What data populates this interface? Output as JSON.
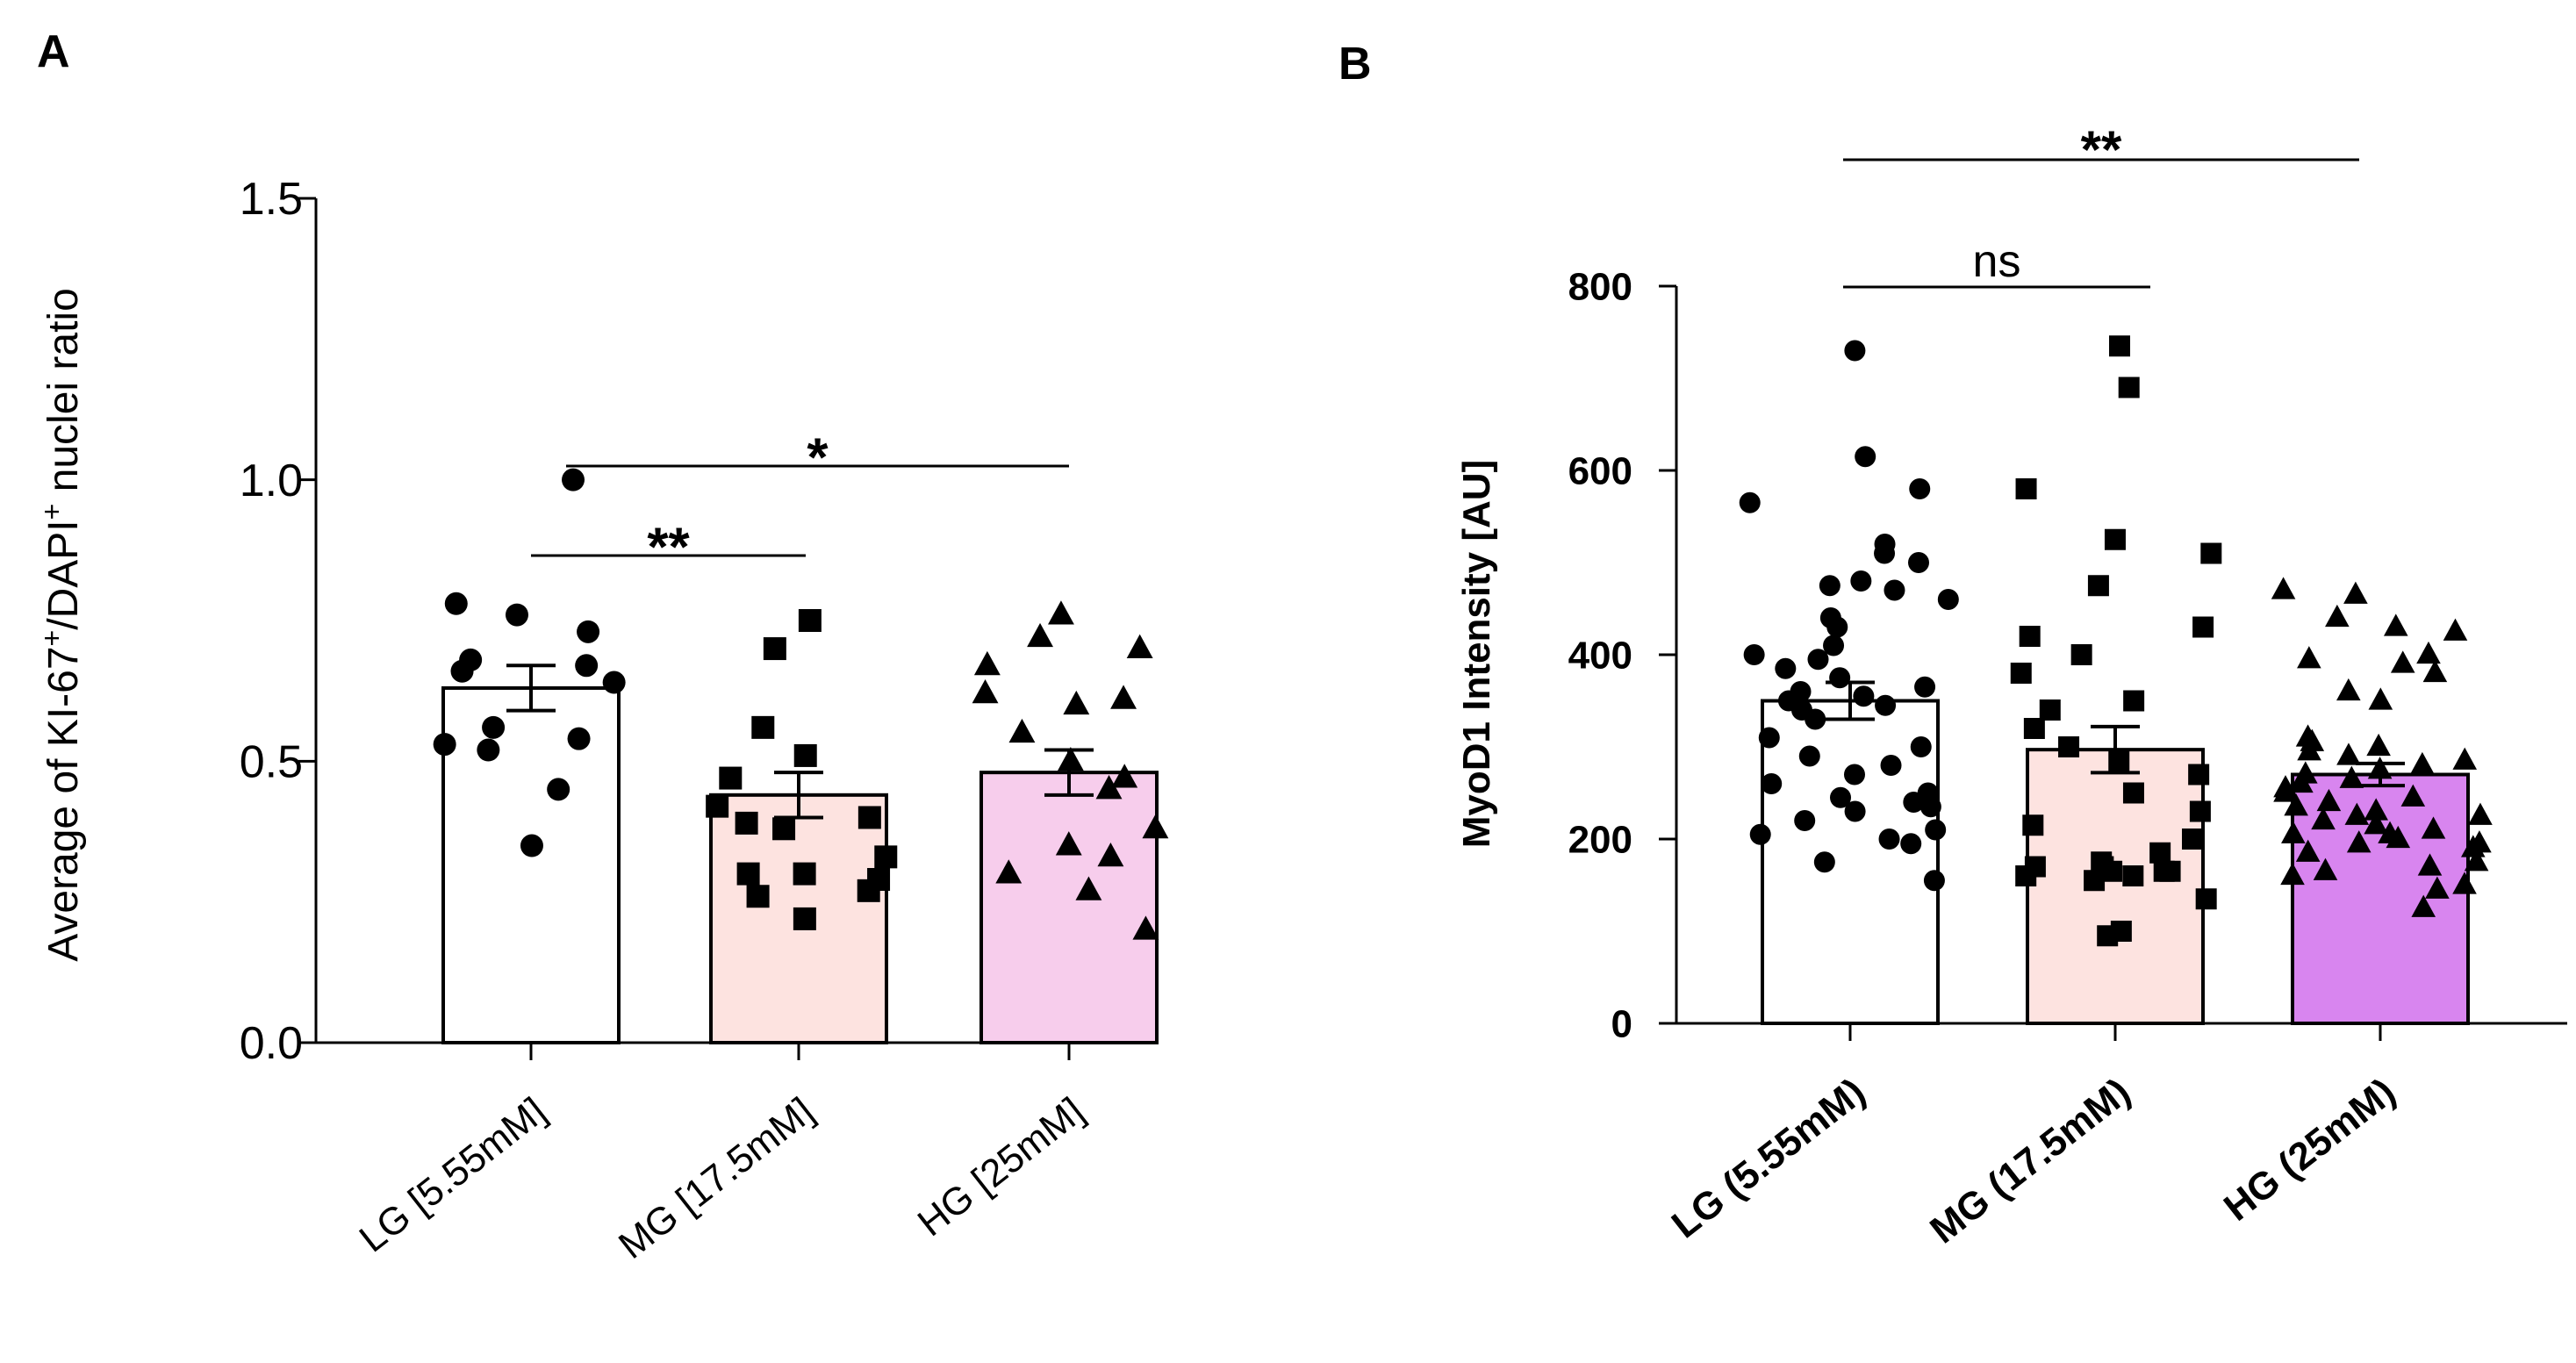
{
  "panels": {
    "a": {
      "label": "A"
    },
    "b": {
      "label": "B"
    }
  },
  "chart_data": [
    {
      "type": "bar",
      "panel": "A",
      "title": "",
      "xlabel": "",
      "ylabel": "Average of KI-67⁺/DAPI⁺ nuclei ratio",
      "ylim": [
        0,
        1.5
      ],
      "yticks": [
        "0.0",
        "0.5",
        "1.0",
        "1.5"
      ],
      "grid": false,
      "categories": [
        "LG [5.55mM]",
        "MG [17.5mM]",
        "HG [25mM]"
      ],
      "values": [
        0.63,
        0.44,
        0.48
      ],
      "sem": [
        0.04,
        0.04,
        0.04
      ],
      "colors": [
        "#ffffff",
        "#fde3e0",
        "#f7cdec"
      ],
      "markers": [
        "circle",
        "square",
        "triangle"
      ],
      "points": [
        [
          1.0,
          0.78,
          0.76,
          0.73,
          0.68,
          0.67,
          0.66,
          0.64,
          0.56,
          0.54,
          0.53,
          0.52,
          0.45,
          0.35
        ],
        [
          0.75,
          0.7,
          0.56,
          0.51,
          0.47,
          0.42,
          0.4,
          0.39,
          0.38,
          0.33,
          0.3,
          0.3,
          0.29,
          0.27,
          0.26,
          0.22
        ],
        [
          0.76,
          0.72,
          0.7,
          0.67,
          0.61,
          0.62,
          0.6,
          0.55,
          0.5,
          0.47,
          0.45,
          0.38,
          0.35,
          0.33,
          0.3,
          0.27,
          0.2
        ]
      ],
      "significance": [
        {
          "from": 0,
          "to": 1,
          "label": "**"
        },
        {
          "from": 0,
          "to": 2,
          "label": "*"
        }
      ]
    },
    {
      "type": "bar",
      "panel": "B",
      "title": "",
      "xlabel": "",
      "ylabel": "MyoD1 Intensity [AU]",
      "ylim": [
        0,
        800
      ],
      "yticks": [
        "0",
        "200",
        "400",
        "600",
        "800"
      ],
      "grid": false,
      "categories": [
        "LG (5.55mM)",
        "MG (17.5mM)",
        "HG (25mM)"
      ],
      "values": [
        350,
        297,
        270
      ],
      "sem": [
        20,
        25,
        12
      ],
      "colors": [
        "#ffffff",
        "#fde3e0",
        "#d885ef"
      ],
      "markers": [
        "circle",
        "square",
        "triangle"
      ],
      "points": [
        [
          730,
          615,
          580,
          565,
          520,
          510,
          500,
          480,
          475,
          470,
          460,
          440,
          430,
          410,
          400,
          395,
          385,
          375,
          365,
          360,
          355,
          350,
          345,
          340,
          330,
          310,
          300,
          290,
          280,
          270,
          260,
          250,
          245,
          240,
          235,
          230,
          220,
          210,
          205,
          200,
          195,
          175,
          155
        ],
        [
          735,
          690,
          580,
          525,
          510,
          475,
          430,
          420,
          400,
          380,
          350,
          340,
          320,
          300,
          285,
          270,
          250,
          230,
          215,
          200,
          185,
          175,
          170,
          170,
          165,
          165,
          165,
          160,
          160,
          155,
          135,
          100,
          95
        ],
        [
          470,
          465,
          440,
          430,
          425,
          400,
          395,
          390,
          380,
          360,
          350,
          310,
          305,
          300,
          295,
          290,
          285,
          280,
          275,
          270,
          265,
          260,
          255,
          250,
          245,
          240,
          235,
          230,
          225,
          225,
          220,
          215,
          210,
          205,
          205,
          200,
          195,
          195,
          190,
          185,
          175,
          170,
          165,
          160,
          150,
          145,
          125
        ]
      ],
      "significance": [
        {
          "from": 0,
          "to": 1,
          "label": "ns"
        },
        {
          "from": 0,
          "to": 2,
          "label": "**"
        }
      ]
    }
  ]
}
